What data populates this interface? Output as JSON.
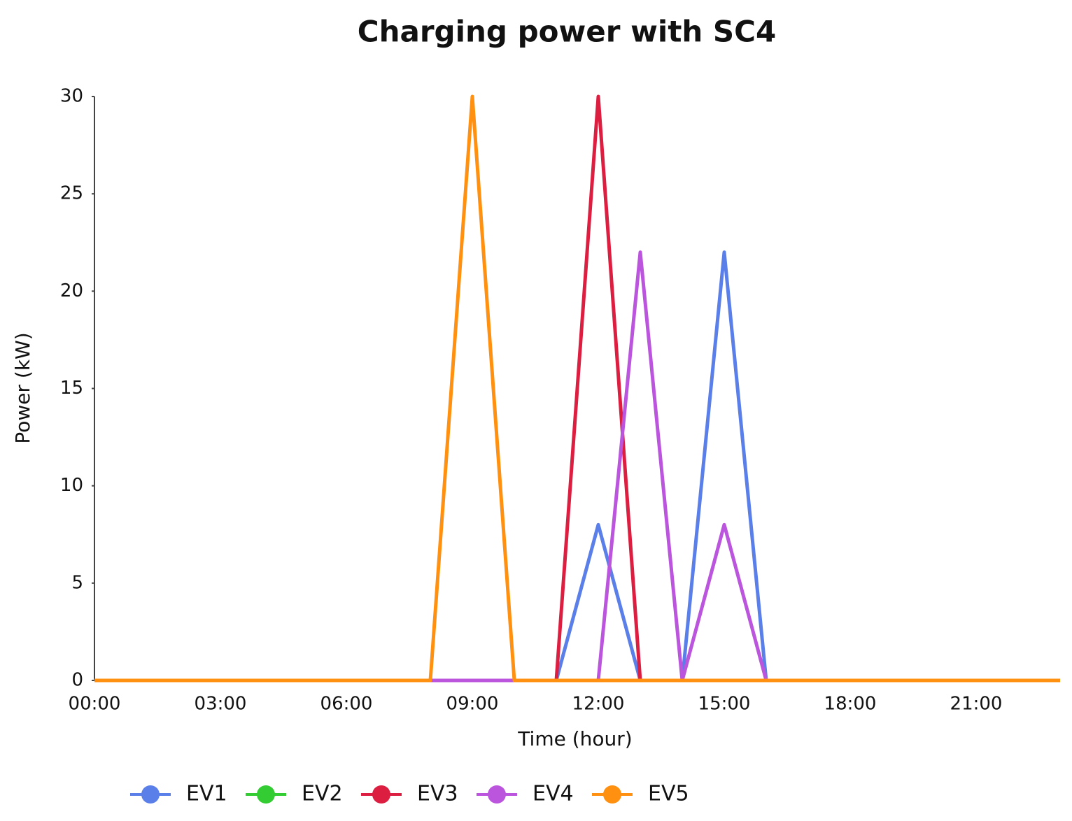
{
  "chart_data": {
    "type": "line",
    "title": "Charging power with SC4",
    "x_label": "Time (hour)",
    "y_label": "Power (kW)",
    "categories": [
      "00:00",
      null,
      null,
      "03:00",
      null,
      null,
      "06:00",
      null,
      null,
      "09:00",
      null,
      null,
      "12:00",
      null,
      null,
      "15:00",
      null,
      null,
      "18:00",
      null,
      null,
      "21:00",
      null,
      null
    ],
    "ylim": [
      0,
      30
    ],
    "yticks": [
      0,
      5,
      10,
      15,
      20,
      25,
      30
    ],
    "series": [
      {
        "name": "EV1",
        "color": "#5b7fe8",
        "values": [
          0,
          0,
          0,
          0,
          0,
          0,
          0,
          0,
          0,
          0,
          0,
          0,
          8,
          0,
          0,
          22,
          0,
          0,
          0,
          0,
          0,
          0,
          0,
          0
        ]
      },
      {
        "name": "EV2",
        "color": "#33cc33",
        "values": [
          0,
          0,
          0,
          0,
          0,
          0,
          0,
          0,
          0,
          0,
          0,
          0,
          0,
          0,
          0,
          0,
          0,
          0,
          0,
          0,
          0,
          0,
          0,
          0
        ]
      },
      {
        "name": "EV3",
        "color": "#dc1e40",
        "values": [
          0,
          0,
          0,
          0,
          0,
          0,
          0,
          0,
          0,
          0,
          0,
          0,
          30,
          0,
          0,
          0,
          0,
          0,
          0,
          0,
          0,
          0,
          0,
          0
        ]
      },
      {
        "name": "EV4",
        "color": "#bb55dd",
        "values": [
          0,
          0,
          0,
          0,
          0,
          0,
          0,
          0,
          0,
          0,
          0,
          0,
          0,
          22,
          0,
          8,
          0,
          0,
          0,
          0,
          0,
          0,
          0,
          0
        ]
      },
      {
        "name": "EV5",
        "color": "#ff9010",
        "values": [
          0,
          0,
          0,
          0,
          0,
          0,
          0,
          0,
          0,
          30,
          0,
          0,
          0,
          0,
          0,
          0,
          0,
          0,
          0,
          0,
          0,
          0,
          0,
          0
        ]
      }
    ]
  }
}
